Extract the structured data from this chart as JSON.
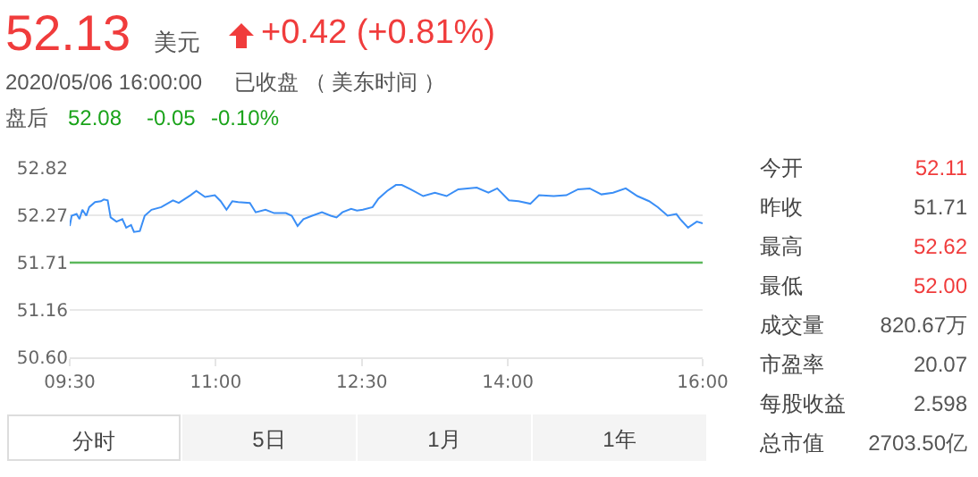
{
  "chart_data": {
    "type": "line",
    "x": [
      9.5,
      9.52,
      9.57,
      9.6,
      9.63,
      9.67,
      9.7,
      9.76,
      9.82,
      9.85,
      9.89,
      9.92,
      9.98,
      10.04,
      10.08,
      10.13,
      10.16,
      10.22,
      10.27,
      10.34,
      10.44,
      10.56,
      10.62,
      10.74,
      10.8,
      10.89,
      10.99,
      11.05,
      11.11,
      11.17,
      11.23,
      11.35,
      11.41,
      11.51,
      11.6,
      11.72,
      11.78,
      11.84,
      11.9,
      11.99,
      12.09,
      12.18,
      12.24,
      12.3,
      12.39,
      12.45,
      12.51,
      12.61,
      12.67,
      12.76,
      12.85,
      12.91,
      13.0,
      13.13,
      13.25,
      13.37,
      13.49,
      13.68,
      13.8,
      13.89,
      14.01,
      14.11,
      14.23,
      14.32,
      14.47,
      14.6,
      14.72,
      14.84,
      14.96,
      15.08,
      15.21,
      15.33,
      15.45,
      15.54,
      15.64,
      15.73,
      15.77,
      15.85,
      15.94,
      16.0
    ],
    "series": [
      {
        "color": "#3a8ef6",
        "values": [
          52.14,
          52.26,
          52.28,
          52.22,
          52.33,
          52.26,
          52.36,
          52.42,
          52.43,
          52.45,
          52.44,
          52.24,
          52.19,
          52.22,
          52.12,
          52.15,
          52.07,
          52.08,
          52.26,
          52.33,
          52.36,
          52.44,
          52.41,
          52.5,
          52.55,
          52.48,
          52.5,
          52.43,
          52.33,
          52.43,
          52.42,
          52.41,
          52.3,
          52.33,
          52.29,
          52.29,
          52.26,
          52.14,
          52.22,
          52.26,
          52.3,
          52.26,
          52.24,
          52.3,
          52.34,
          52.32,
          52.33,
          52.36,
          52.46,
          52.55,
          52.62,
          52.62,
          52.57,
          52.49,
          52.53,
          52.49,
          52.57,
          52.59,
          52.53,
          52.58,
          52.44,
          52.43,
          52.4,
          52.5,
          52.49,
          52.5,
          52.57,
          52.58,
          52.51,
          52.53,
          52.58,
          52.49,
          52.43,
          52.36,
          52.26,
          52.28,
          52.22,
          52.12,
          52.19,
          52.17
        ]
      }
    ],
    "xlim": [
      9.5,
      16
    ],
    "xticks": [
      {
        "value": 9.5,
        "label": "09:30"
      },
      {
        "value": 11,
        "label": "11:00"
      },
      {
        "value": 12.5,
        "label": "12:30"
      },
      {
        "value": 14,
        "label": "14:00"
      },
      {
        "value": 16,
        "label": "16:00"
      }
    ],
    "ylim": [
      50.6,
      52.82
    ],
    "yticks": [
      {
        "value": 50.6,
        "label": "50.60"
      },
      51.16,
      51.71,
      52.27,
      52.82
    ],
    "grid": "y",
    "marker": "none",
    "line_style": "solid",
    "ref_lines": [
      {
        "axis": "y",
        "value": 51.71,
        "color": "#5cb85c"
      }
    ],
    "annotations": [
      "52.13",
      "美元",
      "+0.42 (+0.81%)",
      "2020/05/06 16:00:00",
      "已收盘 （ 美东时间 ）",
      "盘后",
      "52.08",
      "-0.05",
      "-0.10%",
      "今开",
      "52.11",
      "昨收",
      "51.71",
      "最高",
      "52.62",
      "最低",
      "52.00",
      "成交量",
      "820.67万",
      "市盈率",
      "20.07",
      "每股收益",
      "2.598",
      "总市值",
      "2703.50亿",
      "分时",
      "5日",
      "1月",
      "1年"
    ]
  }
}
